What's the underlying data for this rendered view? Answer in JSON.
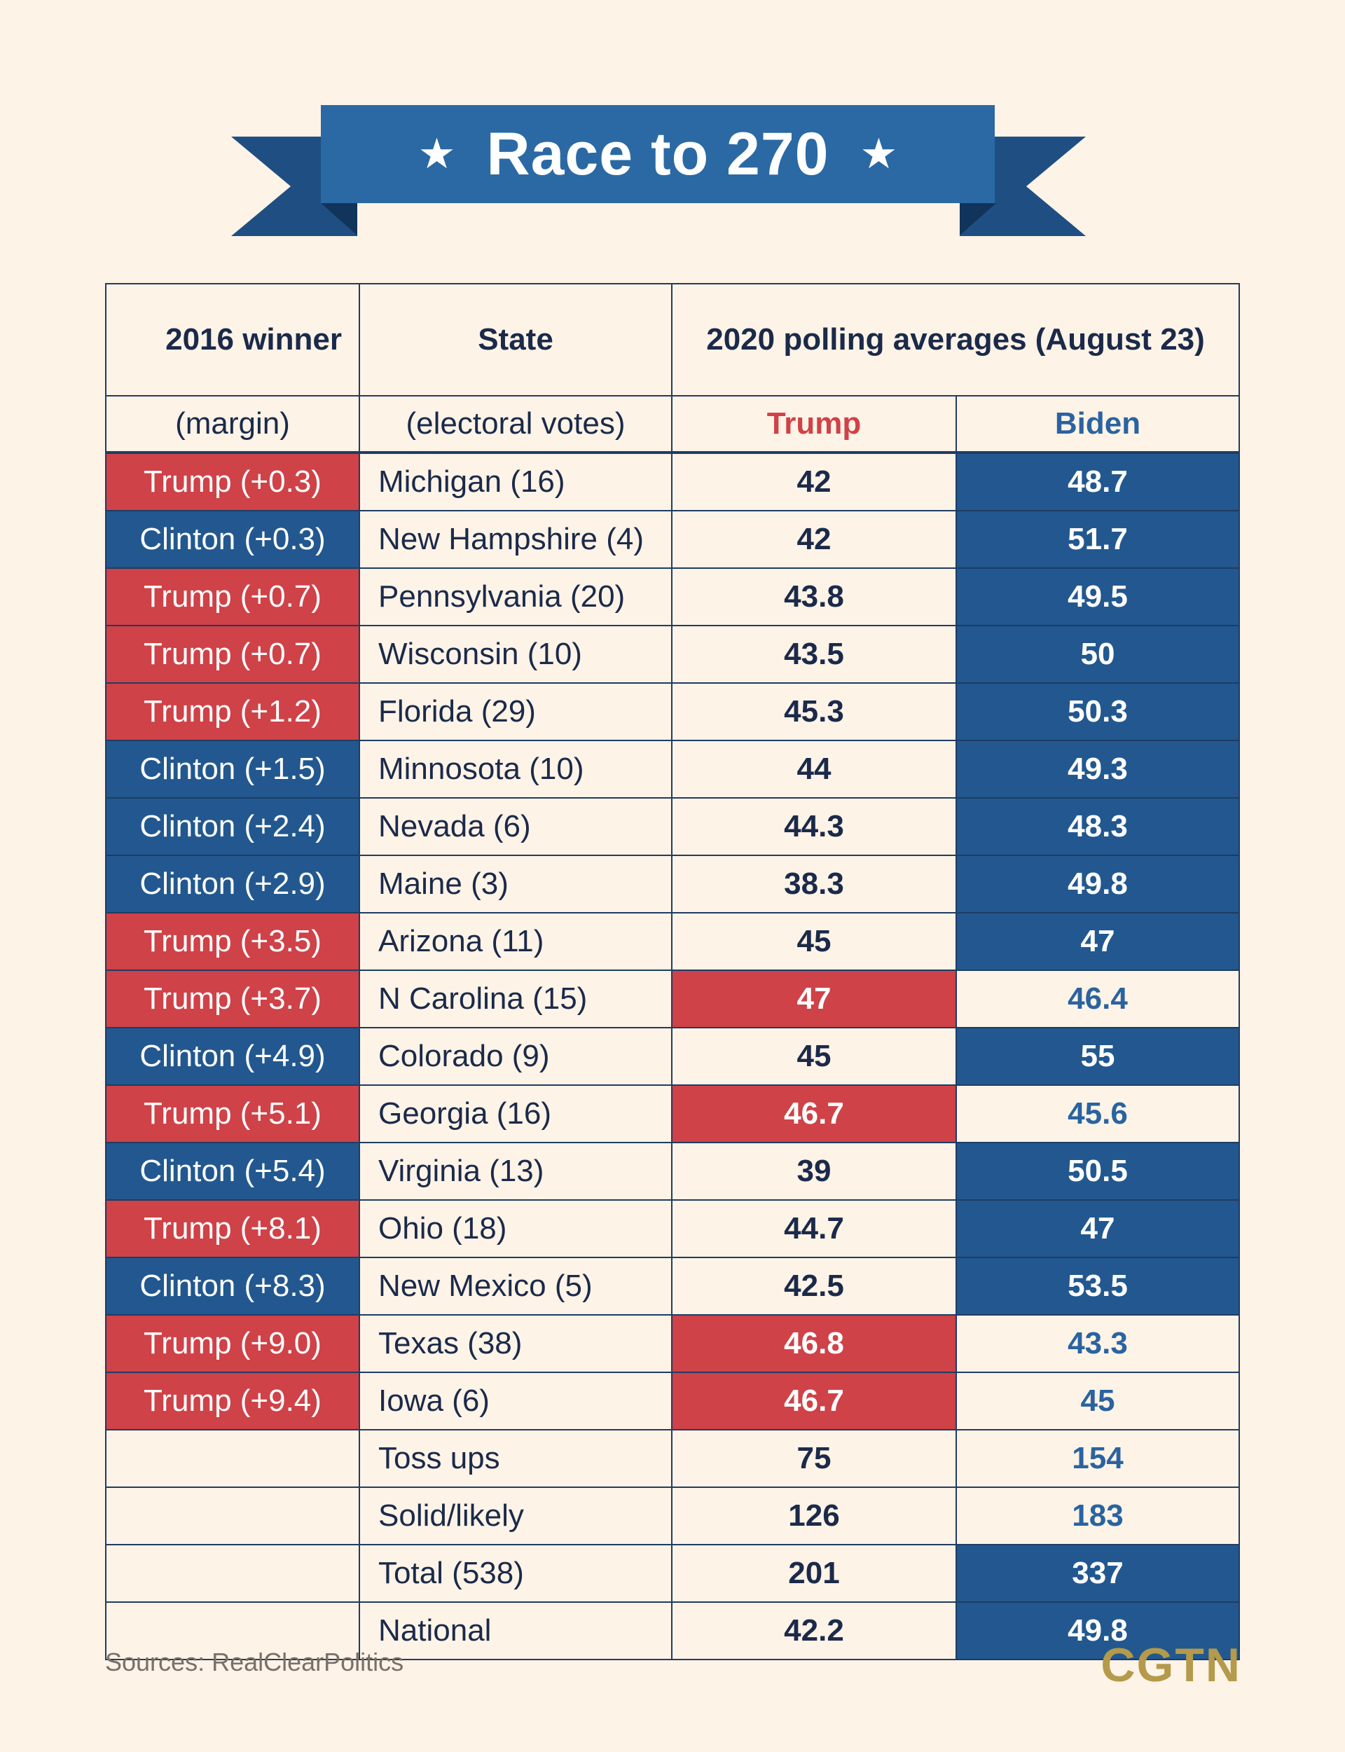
{
  "title": "Race to 270",
  "star": "★",
  "headers": {
    "winner": "2016 winner",
    "winner_sub": "(margin)",
    "state": "State",
    "state_sub": "(electoral votes)",
    "polling": "2020 polling averages (August 23)",
    "trump": "Trump",
    "biden": "Biden"
  },
  "colors": {
    "red": "#cf4248",
    "blue": "#22588f",
    "background": "#fdf3e7",
    "gold": "#b49a4a"
  },
  "chart_data": {
    "type": "table",
    "title": "Race to 270",
    "columns": [
      "2016 winner (margin)",
      "State (electoral votes)",
      "Trump",
      "Biden"
    ],
    "rows": [
      {
        "winner": "Trump (+0.3)",
        "winner_party": "red",
        "state": "Michigan (16)",
        "trump": "42",
        "biden": "48.7",
        "leader": "biden"
      },
      {
        "winner": "Clinton (+0.3)",
        "winner_party": "blue",
        "state": "New Hampshire (4)",
        "trump": "42",
        "biden": "51.7",
        "leader": "biden"
      },
      {
        "winner": "Trump (+0.7)",
        "winner_party": "red",
        "state": "Pennsylvania (20)",
        "trump": "43.8",
        "biden": "49.5",
        "leader": "biden"
      },
      {
        "winner": "Trump (+0.7)",
        "winner_party": "red",
        "state": "Wisconsin (10)",
        "trump": "43.5",
        "biden": "50",
        "leader": "biden"
      },
      {
        "winner": "Trump (+1.2)",
        "winner_party": "red",
        "state": "Florida (29)",
        "trump": "45.3",
        "biden": "50.3",
        "leader": "biden"
      },
      {
        "winner": "Clinton (+1.5)",
        "winner_party": "blue",
        "state": "Minnosota (10)",
        "trump": "44",
        "biden": "49.3",
        "leader": "biden"
      },
      {
        "winner": "Clinton (+2.4)",
        "winner_party": "blue",
        "state": "Nevada (6)",
        "trump": "44.3",
        "biden": "48.3",
        "leader": "biden"
      },
      {
        "winner": "Clinton (+2.9)",
        "winner_party": "blue",
        "state": "Maine (3)",
        "trump": "38.3",
        "biden": "49.8",
        "leader": "biden"
      },
      {
        "winner": "Trump (+3.5)",
        "winner_party": "red",
        "state": "Arizona (11)",
        "trump": "45",
        "biden": "47",
        "leader": "biden"
      },
      {
        "winner": "Trump (+3.7)",
        "winner_party": "red",
        "state": "N Carolina (15)",
        "trump": "47",
        "biden": "46.4",
        "leader": "trump"
      },
      {
        "winner": "Clinton (+4.9)",
        "winner_party": "blue",
        "state": "Colorado (9)",
        "trump": "45",
        "biden": "55",
        "leader": "biden"
      },
      {
        "winner": "Trump (+5.1)",
        "winner_party": "red",
        "state": "Georgia (16)",
        "trump": "46.7",
        "biden": "45.6",
        "leader": "trump"
      },
      {
        "winner": "Clinton (+5.4)",
        "winner_party": "blue",
        "state": "Virginia (13)",
        "trump": "39",
        "biden": "50.5",
        "leader": "biden"
      },
      {
        "winner": "Trump (+8.1)",
        "winner_party": "red",
        "state": "Ohio (18)",
        "trump": "44.7",
        "biden": "47",
        "leader": "biden"
      },
      {
        "winner": "Clinton (+8.3)",
        "winner_party": "blue",
        "state": "New Mexico (5)",
        "trump": "42.5",
        "biden": "53.5",
        "leader": "biden"
      },
      {
        "winner": "Trump (+9.0)",
        "winner_party": "red",
        "state": "Texas (38)",
        "trump": "46.8",
        "biden": "43.3",
        "leader": "trump"
      },
      {
        "winner": "Trump (+9.4)",
        "winner_party": "red",
        "state": "Iowa (6)",
        "trump": "46.7",
        "biden": "45",
        "leader": "trump"
      }
    ],
    "summary": [
      {
        "label": "Toss ups",
        "trump": "75",
        "biden": "154",
        "highlight": "none"
      },
      {
        "label": "Solid/likely",
        "trump": "126",
        "biden": "183",
        "highlight": "none"
      },
      {
        "label": "Total (538)",
        "trump": "201",
        "biden": "337",
        "highlight": "biden"
      },
      {
        "label": "National",
        "trump": "42.2",
        "biden": "49.8",
        "highlight": "biden"
      }
    ]
  },
  "footer": {
    "source": "Sources: RealClearPolitics",
    "logo": "CGTN"
  }
}
